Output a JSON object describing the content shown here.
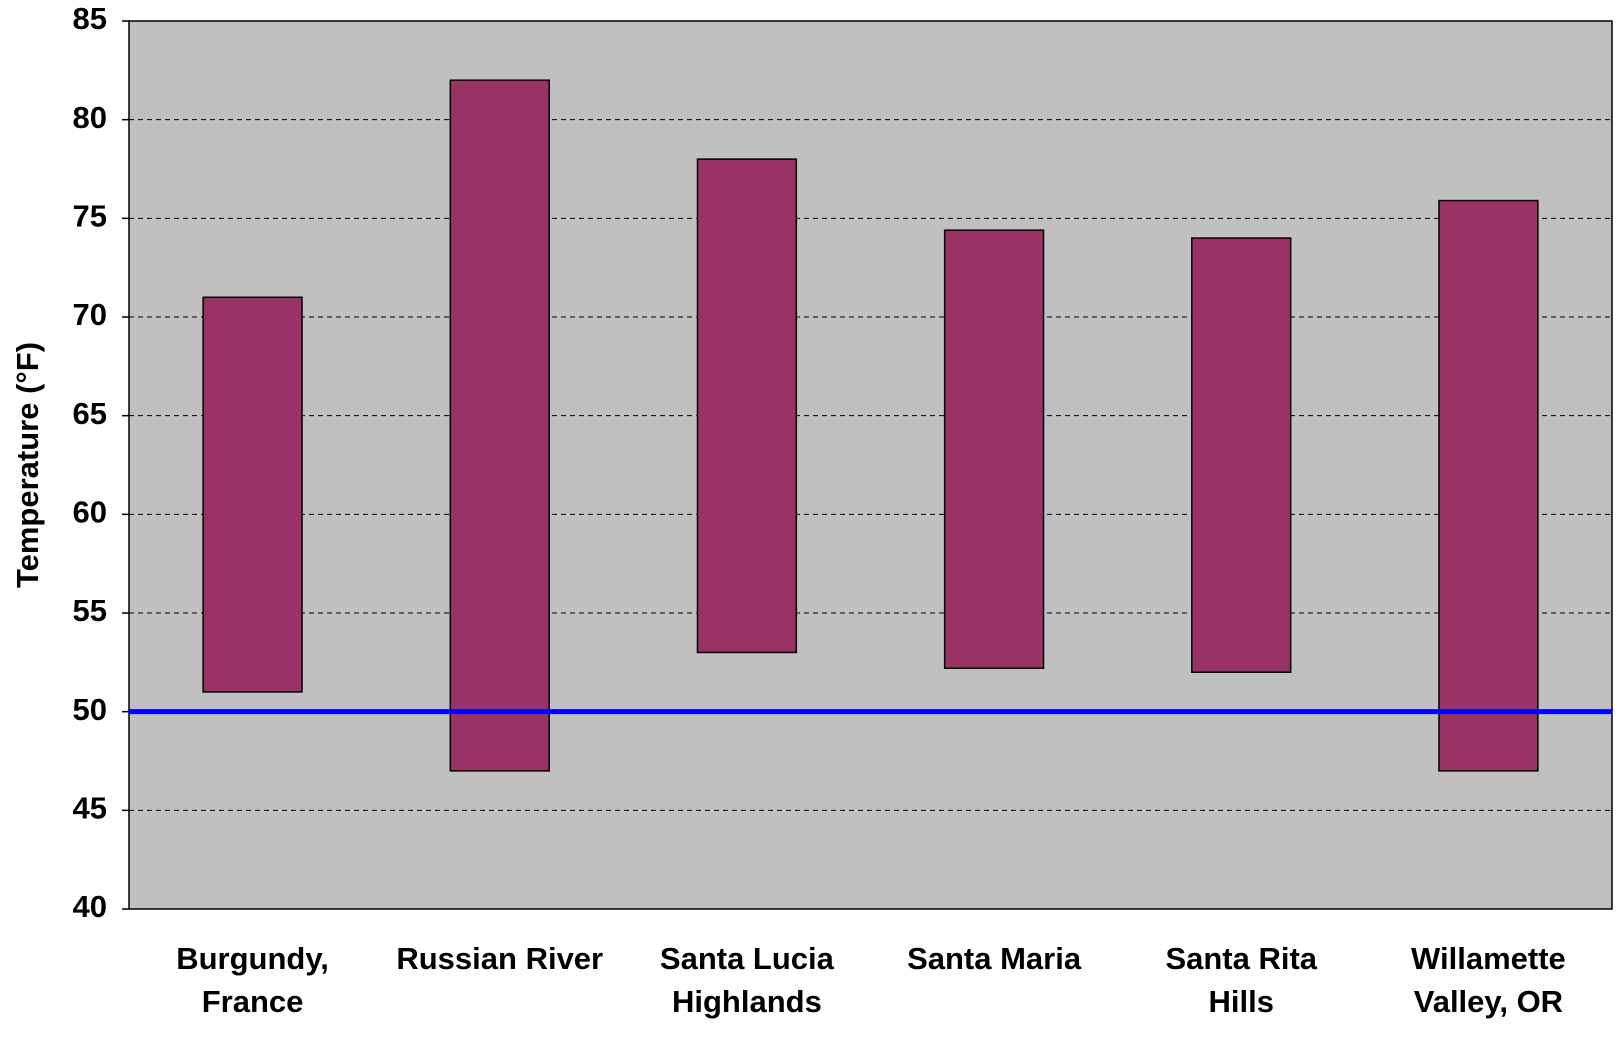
{
  "chart_data": {
    "type": "floating_bar",
    "y_label": "Temperature (°F)",
    "categories": [
      [
        "Burgundy,",
        "France"
      ],
      [
        "Russian River"
      ],
      [
        "Santa Lucia",
        "Highlands"
      ],
      [
        "Santa Maria"
      ],
      [
        "Santa Rita",
        "Hills"
      ],
      [
        "Willamette",
        "Valley, OR"
      ]
    ],
    "values": [
      [
        51,
        71
      ],
      [
        47,
        82
      ],
      [
        53,
        78
      ],
      [
        52.2,
        74.4
      ],
      [
        52,
        74
      ],
      [
        47,
        75.9
      ]
    ],
    "color": "#993366",
    "reference_line": {
      "value": 50,
      "color": "#0000ff"
    },
    "ylim": [
      40,
      85
    ],
    "yticks": [
      40,
      45,
      50,
      55,
      60,
      65,
      70,
      75,
      80,
      85
    ],
    "grid": true,
    "background": "#c0c0c0"
  }
}
